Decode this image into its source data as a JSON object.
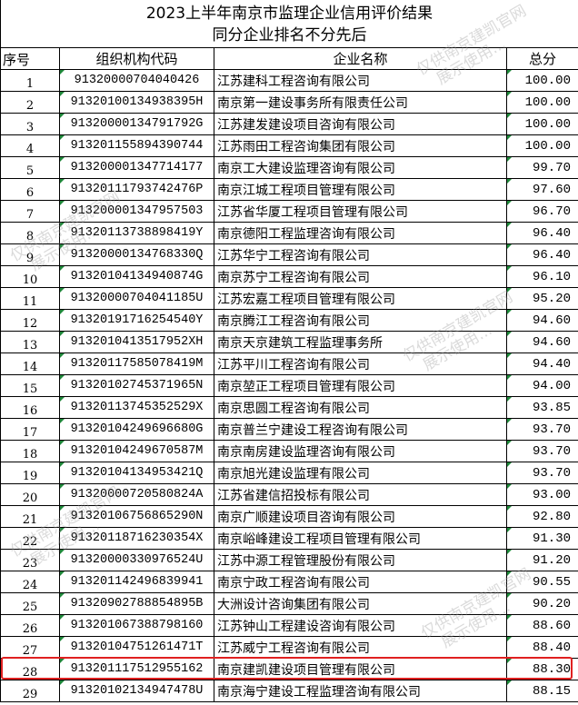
{
  "title": {
    "line1": "2023上半年南京市监理企业信用评价结果",
    "line2": "同分企业排名不分先后"
  },
  "headers": {
    "seq": "序号",
    "code": "组织机构代码",
    "name": "企业名称",
    "score": "总分"
  },
  "rows": [
    {
      "seq": "1",
      "code": "91320000704040426",
      "name": "江苏建科工程咨询有限公司",
      "score": "100.00"
    },
    {
      "seq": "2",
      "code": "91320100134938395H",
      "name": "南京第一建设事务所有限责任公司",
      "score": "100.00"
    },
    {
      "seq": "3",
      "code": "91320000134791792G",
      "name": "江苏建发建设项目咨询有限公司",
      "score": "100.00"
    },
    {
      "seq": "4",
      "code": "913201155894390744",
      "name": "江苏雨田工程咨询集团有限公司",
      "score": "100.00"
    },
    {
      "seq": "5",
      "code": "913200001347714177",
      "name": "南京工大建设监理咨询有限公司",
      "score": "99.70"
    },
    {
      "seq": "6",
      "code": "91320111793742476P",
      "name": "南京江城工程项目管理有限公司",
      "score": "97.60"
    },
    {
      "seq": "7",
      "code": "913200001347957503",
      "name": "江苏省华厦工程项目管理有限公司",
      "score": "96.70"
    },
    {
      "seq": "8",
      "code": "91320113738898419Y",
      "name": "南京德阳工程监理咨询有限公司",
      "score": "96.40"
    },
    {
      "seq": "9",
      "code": "91320000134768330Q",
      "name": "江苏华宁工程咨询有限公司",
      "score": "96.40"
    },
    {
      "seq": "10",
      "code": "91320104134940874G",
      "name": "南京苏宁工程咨询有限公司",
      "score": "96.10"
    },
    {
      "seq": "11",
      "code": "91320000704041185U",
      "name": "江苏宏嘉工程项目管理有限公司",
      "score": "95.20"
    },
    {
      "seq": "12",
      "code": "91320191716254540Y",
      "name": "南京腾江工程咨询有限公司",
      "score": "94.60"
    },
    {
      "seq": "13",
      "code": "9132010413517952XH",
      "name": "南京天京建筑工程监理事务所",
      "score": "94.60"
    },
    {
      "seq": "14",
      "code": "91320117585078419M",
      "name": "江苏平川工程咨询有限公司",
      "score": "94.40"
    },
    {
      "seq": "15",
      "code": "91320102745371965N",
      "name": "南京堃正工程项目管理有限公司",
      "score": "94.00"
    },
    {
      "seq": "16",
      "code": "91320113745352529X",
      "name": "南京思圆工程咨询有限公司",
      "score": "93.85"
    },
    {
      "seq": "17",
      "code": "91320104249696680G",
      "name": "南京普兰宁建设工程咨询有限公司",
      "score": "93.70"
    },
    {
      "seq": "18",
      "code": "91320104249670587M",
      "name": "南京南房建设监理咨询有限公司",
      "score": "93.70"
    },
    {
      "seq": "19",
      "code": "91320104134953421Q",
      "name": "南京旭光建设监理有限公司",
      "score": "93.70"
    },
    {
      "seq": "20",
      "code": "91320000720580824A",
      "name": "江苏省建信招投标有限公司",
      "score": "93.00"
    },
    {
      "seq": "21",
      "code": "91320106756865290N",
      "name": "南京广顺建设项目咨询有限公司",
      "score": "92.80"
    },
    {
      "seq": "22",
      "code": "91320118716230354X",
      "name": "南京峪峰建设工程项目管理有限公司",
      "score": "91.30"
    },
    {
      "seq": "23",
      "code": "91320000330976524U",
      "name": "江苏中源工程管理股份有限公司",
      "score": "91.20"
    },
    {
      "seq": "24",
      "code": "913201142496839941",
      "name": "南京宁政工程咨询有限公司",
      "score": "90.55"
    },
    {
      "seq": "25",
      "code": "91320902788854895B",
      "name": "大洲设计咨询集团有限公司",
      "score": "90.20"
    },
    {
      "seq": "26",
      "code": "913201067388798160",
      "name": "江苏钟山工程建设咨询有限公司",
      "score": "88.60"
    },
    {
      "seq": "27",
      "code": "91320104751261471T",
      "name": "江苏威宁工程咨询有限公司",
      "score": "88.40"
    },
    {
      "seq": "28",
      "code": "913201117512955162",
      "name": "南京建凯建设项目管理有限公司",
      "score": "88.30"
    },
    {
      "seq": "29",
      "code": "91320102134947478U",
      "name": "南京海宁建设工程监理咨询有限公司",
      "score": "88.15"
    }
  ],
  "highlighted_row": "28",
  "highlight_color": "#e02020",
  "watermark": {
    "line1": "仅供南京建凯官网",
    "line2": "展示使用..."
  }
}
